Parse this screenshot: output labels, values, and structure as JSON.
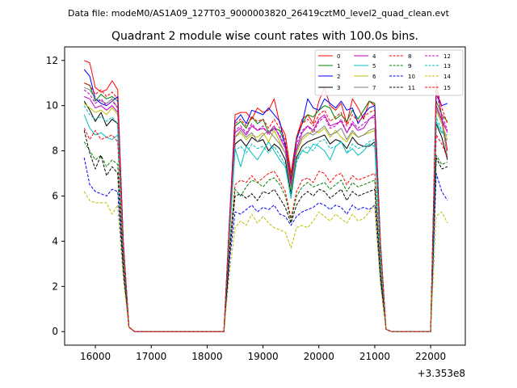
{
  "header": "Data file: modeM0/AS1A09_127T03_9000003820_26419cztM0_level2_quad_clean.evt",
  "chart_data": {
    "type": "line",
    "title": "Quadrant 2 module wise count rates with 100.0s bins.",
    "xlabel": "",
    "ylabel": "",
    "offset_text": "+3.353e8",
    "xlim": [
      15450,
      22620
    ],
    "ylim": [
      -0.6,
      12.6
    ],
    "xticks": [
      16000,
      17000,
      18000,
      19000,
      20000,
      21000,
      22000
    ],
    "yticks": [
      0,
      2,
      4,
      6,
      8,
      10,
      12
    ],
    "legend_position": "upper right",
    "x": [
      15800,
      15900,
      16000,
      16100,
      16200,
      16300,
      16400,
      16500,
      16600,
      16700,
      16800,
      16900,
      17000,
      17100,
      17200,
      17300,
      17400,
      17500,
      17600,
      17700,
      17800,
      17900,
      18000,
      18100,
      18200,
      18300,
      18400,
      18500,
      18600,
      18700,
      18800,
      18900,
      19000,
      19100,
      19200,
      19300,
      19400,
      19500,
      19600,
      19700,
      19800,
      19900,
      20000,
      20100,
      20200,
      20300,
      20400,
      20500,
      20600,
      20700,
      20800,
      20900,
      21000,
      21100,
      21200,
      21300,
      21400,
      21500,
      21600,
      21700,
      21800,
      21900,
      22000,
      22100,
      22200,
      22300
    ],
    "series": [
      {
        "name": "0",
        "color": "#ff0000",
        "dash": "solid",
        "values": [
          12.0,
          11.9,
          10.8,
          10.6,
          10.7,
          11.1,
          10.7,
          4.0,
          0.2,
          0.0,
          0.0,
          0.0,
          0.0,
          0.0,
          0.0,
          0.0,
          0.0,
          0.0,
          0.0,
          0.0,
          0.0,
          0.0,
          0.0,
          0.0,
          0.0,
          0.0,
          5.0,
          9.6,
          9.7,
          9.7,
          9.4,
          9.9,
          9.7,
          9.8,
          10.3,
          9.2,
          8.7,
          7.0,
          8.6,
          9.4,
          9.6,
          9.2,
          10.2,
          10.8,
          10.0,
          9.8,
          10.1,
          9.2,
          10.3,
          9.9,
          9.4,
          10.2,
          10.0,
          4.0,
          0.1,
          0.0,
          0.0,
          0.0,
          0.0,
          0.0,
          0.0,
          0.0,
          0.0,
          11.0,
          9.5,
          8.0
        ]
      },
      {
        "name": "1",
        "color": "#008000",
        "dash": "solid",
        "values": [
          11.0,
          10.9,
          10.2,
          10.5,
          10.3,
          10.4,
          10.2,
          3.9,
          0.2,
          0.0,
          0.0,
          0.0,
          0.0,
          0.0,
          0.0,
          0.0,
          0.0,
          0.0,
          0.0,
          0.0,
          0.0,
          0.0,
          0.0,
          0.0,
          0.0,
          0.0,
          4.8,
          9.1,
          9.3,
          9.0,
          9.5,
          9.2,
          9.4,
          8.8,
          9.0,
          8.9,
          8.3,
          6.8,
          8.6,
          9.2,
          9.6,
          9.5,
          9.8,
          10.0,
          9.9,
          9.4,
          9.6,
          9.3,
          9.8,
          9.4,
          9.8,
          10.2,
          10.1,
          3.9,
          0.1,
          0.0,
          0.0,
          0.0,
          0.0,
          0.0,
          0.0,
          0.0,
          0.0,
          10.2,
          9.6,
          9.3
        ]
      },
      {
        "name": "2",
        "color": "#0000ff",
        "dash": "solid",
        "values": [
          11.6,
          11.3,
          10.3,
          10.1,
          10.0,
          10.2,
          10.4,
          4.0,
          0.2,
          0.0,
          0.0,
          0.0,
          0.0,
          0.0,
          0.0,
          0.0,
          0.0,
          0.0,
          0.0,
          0.0,
          0.0,
          0.0,
          0.0,
          0.0,
          0.0,
          0.0,
          4.9,
          9.3,
          9.6,
          9.2,
          9.8,
          9.7,
          9.6,
          9.9,
          9.6,
          9.3,
          8.2,
          6.6,
          8.5,
          9.2,
          10.3,
          9.9,
          9.8,
          10.3,
          10.1,
          9.9,
          10.2,
          9.8,
          9.9,
          9.2,
          9.6,
          9.9,
          10.0,
          3.9,
          0.1,
          0.0,
          0.0,
          0.0,
          0.0,
          0.0,
          0.0,
          0.0,
          0.0,
          10.5,
          10.0,
          10.1
        ]
      },
      {
        "name": "3",
        "color": "#000000",
        "dash": "solid",
        "values": [
          10.2,
          9.8,
          9.3,
          9.7,
          9.1,
          9.4,
          9.2,
          3.6,
          0.2,
          0.0,
          0.0,
          0.0,
          0.0,
          0.0,
          0.0,
          0.0,
          0.0,
          0.0,
          0.0,
          0.0,
          0.0,
          0.0,
          0.0,
          0.0,
          0.0,
          0.0,
          4.5,
          8.3,
          8.5,
          8.2,
          8.6,
          8.4,
          8.5,
          8.0,
          8.3,
          8.1,
          7.6,
          6.1,
          7.7,
          8.2,
          8.4,
          8.5,
          8.6,
          8.7,
          8.3,
          8.5,
          8.4,
          8.1,
          8.6,
          8.3,
          8.2,
          8.2,
          8.4,
          3.5,
          0.1,
          0.0,
          0.0,
          0.0,
          0.0,
          0.0,
          0.0,
          0.0,
          0.0,
          9.2,
          8.6,
          7.6
        ]
      },
      {
        "name": "4",
        "color": "#bf00bf",
        "dash": "solid",
        "values": [
          10.4,
          10.3,
          9.9,
          10.0,
          9.8,
          10.0,
          9.7,
          3.8,
          0.2,
          0.0,
          0.0,
          0.0,
          0.0,
          0.0,
          0.0,
          0.0,
          0.0,
          0.0,
          0.0,
          0.0,
          0.0,
          0.0,
          0.0,
          0.0,
          0.0,
          0.0,
          4.7,
          8.8,
          9.0,
          8.7,
          9.1,
          8.9,
          9.0,
          8.8,
          9.1,
          8.6,
          8.1,
          6.5,
          8.1,
          8.8,
          9.1,
          8.9,
          9.4,
          9.6,
          9.1,
          9.2,
          9.3,
          8.8,
          9.2,
          8.9,
          9.0,
          9.4,
          9.6,
          3.7,
          0.1,
          0.0,
          0.0,
          0.0,
          0.0,
          0.0,
          0.0,
          0.0,
          0.0,
          10.0,
          9.4,
          8.8
        ]
      },
      {
        "name": "5",
        "color": "#00bfbf",
        "dash": "solid",
        "values": [
          9.6,
          9.0,
          8.7,
          8.8,
          8.6,
          8.5,
          8.7,
          3.4,
          0.2,
          0.0,
          0.0,
          0.0,
          0.0,
          0.0,
          0.0,
          0.0,
          0.0,
          0.0,
          0.0,
          0.0,
          0.0,
          0.0,
          0.0,
          0.0,
          0.0,
          0.0,
          4.2,
          8.1,
          7.3,
          8.2,
          7.9,
          7.6,
          8.0,
          8.4,
          8.0,
          7.6,
          7.3,
          5.9,
          7.6,
          8.0,
          7.9,
          8.3,
          8.2,
          8.0,
          7.6,
          8.2,
          8.4,
          7.9,
          8.1,
          7.8,
          8.0,
          8.3,
          8.2,
          3.3,
          0.1,
          0.0,
          0.0,
          0.0,
          0.0,
          0.0,
          0.0,
          0.0,
          0.0,
          9.3,
          8.8,
          8.7
        ]
      },
      {
        "name": "6",
        "color": "#bfbf00",
        "dash": "solid",
        "values": [
          10.1,
          9.9,
          9.7,
          9.8,
          9.6,
          9.9,
          9.6,
          3.7,
          0.2,
          0.0,
          0.0,
          0.0,
          0.0,
          0.0,
          0.0,
          0.0,
          0.0,
          0.0,
          0.0,
          0.0,
          0.0,
          0.0,
          0.0,
          0.0,
          0.0,
          0.0,
          4.6,
          8.6,
          8.8,
          8.5,
          8.7,
          8.6,
          8.8,
          8.4,
          8.9,
          8.4,
          7.9,
          6.3,
          7.9,
          8.5,
          8.7,
          8.9,
          8.8,
          9.0,
          8.6,
          8.9,
          8.6,
          8.4,
          8.8,
          8.6,
          8.7,
          8.8,
          8.9,
          3.6,
          0.1,
          0.0,
          0.0,
          0.0,
          0.0,
          0.0,
          0.0,
          0.0,
          0.0,
          9.8,
          9.2,
          8.5
        ]
      },
      {
        "name": "7",
        "color": "#808080",
        "dash": "solid",
        "values": [
          10.8,
          10.7,
          10.3,
          10.2,
          10.1,
          10.3,
          9.9,
          3.9,
          0.2,
          0.0,
          0.0,
          0.0,
          0.0,
          0.0,
          0.0,
          0.0,
          0.0,
          0.0,
          0.0,
          0.0,
          0.0,
          0.0,
          0.0,
          0.0,
          0.0,
          0.0,
          4.7,
          8.6,
          8.9,
          8.6,
          8.8,
          8.4,
          8.7,
          8.9,
          8.6,
          8.3,
          7.9,
          6.4,
          8.0,
          8.6,
          8.8,
          8.7,
          8.9,
          9.1,
          8.7,
          8.8,
          9.0,
          8.5,
          8.9,
          8.6,
          8.7,
          8.9,
          9.0,
          3.7,
          0.1,
          0.0,
          0.0,
          0.0,
          0.0,
          0.0,
          0.0,
          0.0,
          0.0,
          9.9,
          9.3,
          7.7
        ]
      },
      {
        "name": "8",
        "color": "#ff0000",
        "dash": "dashed",
        "values": [
          9.0,
          8.5,
          8.9,
          8.5,
          8.6,
          8.7,
          8.4,
          3.3,
          0.2,
          0.0,
          0.0,
          0.0,
          0.0,
          0.0,
          0.0,
          0.0,
          0.0,
          0.0,
          0.0,
          0.0,
          0.0,
          0.0,
          0.0,
          0.0,
          0.0,
          0.0,
          3.8,
          6.5,
          6.7,
          6.6,
          6.9,
          6.6,
          6.8,
          7.0,
          7.1,
          6.7,
          6.2,
          5.0,
          6.2,
          6.7,
          6.8,
          6.6,
          7.1,
          7.0,
          6.6,
          6.9,
          7.0,
          6.5,
          6.9,
          6.7,
          6.8,
          6.9,
          7.0,
          2.8,
          0.1,
          0.0,
          0.0,
          0.0,
          0.0,
          0.0,
          0.0,
          0.0,
          0.0,
          8.7,
          8.3,
          7.7
        ]
      },
      {
        "name": "9",
        "color": "#008000",
        "dash": "dashed",
        "values": [
          8.4,
          8.0,
          7.6,
          7.8,
          7.3,
          7.6,
          7.4,
          3.0,
          0.2,
          0.0,
          0.0,
          0.0,
          0.0,
          0.0,
          0.0,
          0.0,
          0.0,
          0.0,
          0.0,
          0.0,
          0.0,
          0.0,
          0.0,
          0.0,
          0.0,
          0.0,
          3.6,
          6.3,
          6.0,
          6.4,
          6.7,
          6.6,
          6.4,
          6.7,
          6.8,
          6.5,
          6.0,
          4.9,
          6.0,
          6.4,
          6.6,
          6.4,
          6.5,
          6.6,
          6.3,
          6.5,
          6.7,
          6.2,
          6.6,
          6.4,
          6.5,
          6.6,
          6.7,
          2.7,
          0.1,
          0.0,
          0.0,
          0.0,
          0.0,
          0.0,
          0.0,
          0.0,
          0.0,
          7.8,
          7.4,
          7.5
        ]
      },
      {
        "name": "10",
        "color": "#0000ff",
        "dash": "dashed",
        "values": [
          7.7,
          6.5,
          6.2,
          6.1,
          6.0,
          6.3,
          6.2,
          2.5,
          0.2,
          0.0,
          0.0,
          0.0,
          0.0,
          0.0,
          0.0,
          0.0,
          0.0,
          0.0,
          0.0,
          0.0,
          0.0,
          0.0,
          0.0,
          0.0,
          0.0,
          0.0,
          3.1,
          5.3,
          5.2,
          5.4,
          5.6,
          5.3,
          5.5,
          5.4,
          5.6,
          5.2,
          5.1,
          4.7,
          5.1,
          5.3,
          5.4,
          5.5,
          5.7,
          5.6,
          5.4,
          5.6,
          5.5,
          5.2,
          5.6,
          5.4,
          5.5,
          5.4,
          5.6,
          2.3,
          0.1,
          0.0,
          0.0,
          0.0,
          0.0,
          0.0,
          0.0,
          0.0,
          0.0,
          7.0,
          6.2,
          5.8
        ]
      },
      {
        "name": "11",
        "color": "#000000",
        "dash": "dashed",
        "values": [
          8.9,
          7.9,
          7.2,
          7.8,
          6.9,
          7.3,
          7.0,
          2.8,
          0.2,
          0.0,
          0.0,
          0.0,
          0.0,
          0.0,
          0.0,
          0.0,
          0.0,
          0.0,
          0.0,
          0.0,
          0.0,
          0.0,
          0.0,
          0.0,
          0.0,
          0.0,
          3.4,
          6.0,
          6.1,
          5.9,
          6.1,
          5.8,
          6.2,
          6.1,
          6.3,
          5.9,
          5.5,
          4.8,
          5.6,
          6.0,
          6.2,
          6.0,
          6.3,
          6.2,
          5.9,
          6.1,
          6.3,
          5.8,
          6.2,
          6.0,
          6.1,
          6.2,
          6.3,
          2.5,
          0.1,
          0.0,
          0.0,
          0.0,
          0.0,
          0.0,
          0.0,
          0.0,
          0.0,
          7.7,
          7.2,
          7.3
        ]
      },
      {
        "name": "12",
        "color": "#bf00bf",
        "dash": "dashed",
        "values": [
          10.7,
          10.5,
          10.1,
          10.3,
          10.0,
          10.2,
          9.9,
          3.8,
          0.2,
          0.0,
          0.0,
          0.0,
          0.0,
          0.0,
          0.0,
          0.0,
          0.0,
          0.0,
          0.0,
          0.0,
          0.0,
          0.0,
          0.0,
          0.0,
          0.0,
          0.0,
          4.7,
          8.9,
          9.1,
          8.8,
          9.2,
          8.9,
          9.1,
          8.7,
          9.0,
          8.7,
          8.2,
          6.5,
          8.3,
          8.9,
          9.1,
          8.8,
          9.3,
          9.5,
          9.0,
          9.1,
          9.4,
          8.8,
          9.3,
          9.0,
          9.2,
          9.4,
          9.5,
          3.8,
          0.1,
          0.0,
          0.0,
          0.0,
          0.0,
          0.0,
          0.0,
          0.0,
          0.0,
          10.6,
          9.6,
          8.9
        ]
      },
      {
        "name": "13",
        "color": "#00bfbf",
        "dash": "dashed",
        "values": [
          10.0,
          9.6,
          9.4,
          9.5,
          9.3,
          9.5,
          9.2,
          3.6,
          0.2,
          0.0,
          0.0,
          0.0,
          0.0,
          0.0,
          0.0,
          0.0,
          0.0,
          0.0,
          0.0,
          0.0,
          0.0,
          0.0,
          0.0,
          0.0,
          0.0,
          0.0,
          4.4,
          8.0,
          8.2,
          7.9,
          8.3,
          8.1,
          8.2,
          7.9,
          8.2,
          7.8,
          7.4,
          6.0,
          7.5,
          8.0,
          8.2,
          8.0,
          8.4,
          8.5,
          8.1,
          8.2,
          8.4,
          7.9,
          8.3,
          8.1,
          8.2,
          8.4,
          8.5,
          3.4,
          0.1,
          0.0,
          0.0,
          0.0,
          0.0,
          0.0,
          0.0,
          0.0,
          0.0,
          9.5,
          8.9,
          8.4
        ]
      },
      {
        "name": "14",
        "color": "#bfbf00",
        "dash": "dashed",
        "values": [
          6.2,
          5.8,
          5.7,
          5.7,
          5.7,
          5.2,
          5.6,
          2.3,
          0.2,
          0.0,
          0.0,
          0.0,
          0.0,
          0.0,
          0.0,
          0.0,
          0.0,
          0.0,
          0.0,
          0.0,
          0.0,
          0.0,
          0.0,
          0.0,
          0.0,
          0.0,
          2.6,
          4.6,
          4.9,
          4.7,
          5.2,
          4.8,
          5.1,
          4.8,
          4.6,
          4.5,
          4.4,
          3.7,
          4.6,
          4.7,
          4.6,
          4.9,
          5.3,
          5.1,
          4.9,
          5.2,
          5.0,
          4.8,
          5.2,
          4.9,
          5.0,
          5.3,
          5.6,
          2.1,
          0.1,
          0.0,
          0.0,
          0.0,
          0.0,
          0.0,
          0.0,
          0.0,
          0.0,
          5.1,
          5.3,
          4.8
        ]
      },
      {
        "name": "15",
        "color": "#ff0000",
        "dash": "dashed",
        "values": [
          11.0,
          10.9,
          10.5,
          10.7,
          10.4,
          10.6,
          10.3,
          4.0,
          0.2,
          0.0,
          0.0,
          0.0,
          0.0,
          0.0,
          0.0,
          0.0,
          0.0,
          0.0,
          0.0,
          0.0,
          0.0,
          0.0,
          0.0,
          0.0,
          0.0,
          0.0,
          4.9,
          9.2,
          9.4,
          9.1,
          9.5,
          9.3,
          9.4,
          9.0,
          9.4,
          9.0,
          8.5,
          6.7,
          8.6,
          9.2,
          9.4,
          9.1,
          9.6,
          9.8,
          9.3,
          9.5,
          9.7,
          9.1,
          9.6,
          9.3,
          9.5,
          9.7,
          9.8,
          3.9,
          0.1,
          0.0,
          0.0,
          0.0,
          0.0,
          0.0,
          0.0,
          0.0,
          0.0,
          10.9,
          9.9,
          9.2
        ]
      }
    ]
  }
}
